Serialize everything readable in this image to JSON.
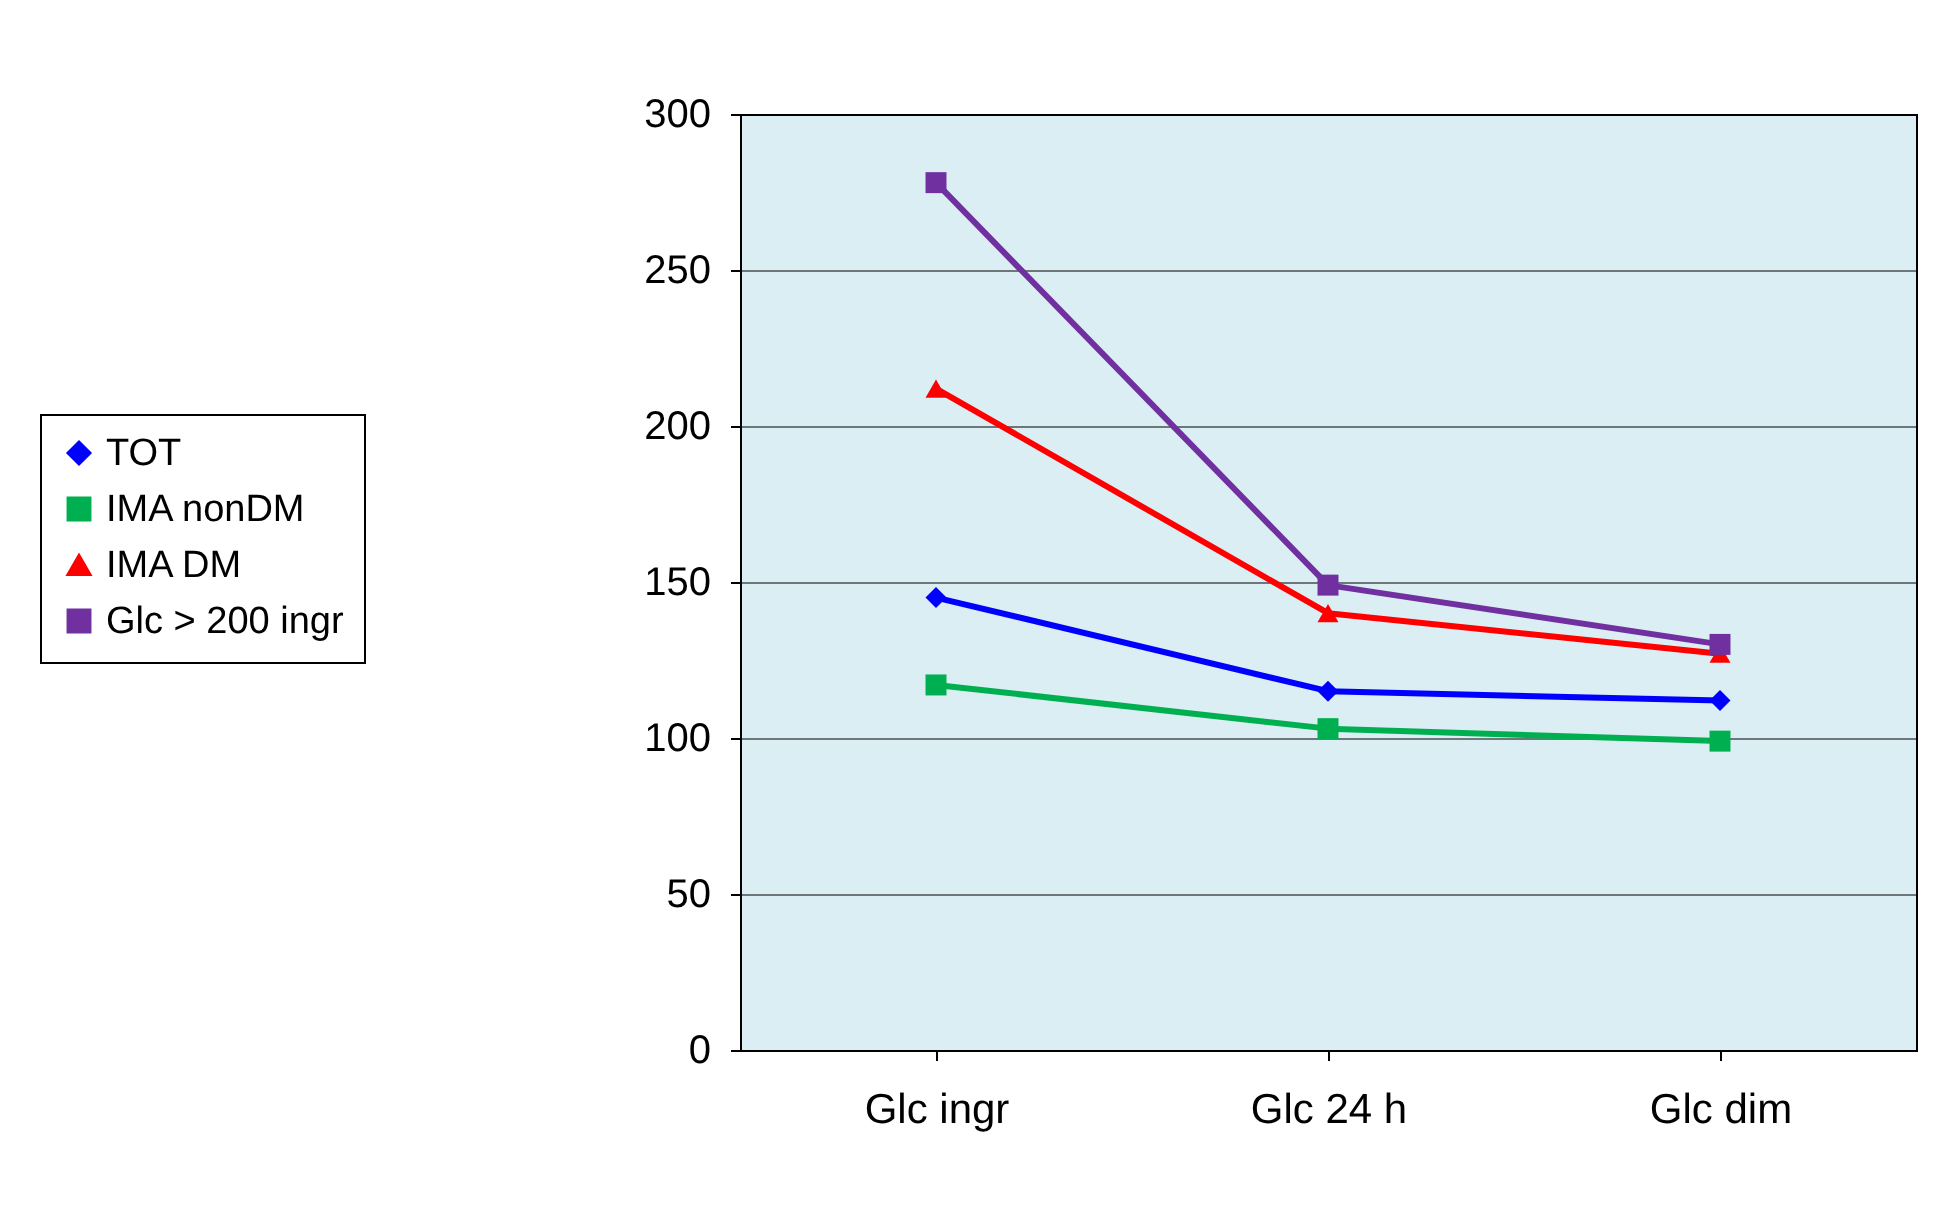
{
  "chart_data": {
    "type": "line",
    "categories": [
      "Glc ingr",
      "Glc 24 h",
      "Glc dim"
    ],
    "series": [
      {
        "name": "TOT",
        "color": "#0000ff",
        "marker": "diamond",
        "values": [
          145,
          115,
          112
        ]
      },
      {
        "name": "IMA nonDM",
        "color": "#00b050",
        "marker": "square",
        "values": [
          117,
          103,
          99
        ]
      },
      {
        "name": "IMA DM",
        "color": "#ff0000",
        "marker": "triangle",
        "values": [
          212,
          140,
          127
        ]
      },
      {
        "name": "Glc > 200 ingr",
        "color": "#7030a0",
        "marker": "square",
        "values": [
          278,
          149,
          130
        ]
      }
    ],
    "ylim": [
      0,
      300
    ],
    "yticks": [
      0,
      50,
      100,
      150,
      200,
      250,
      300
    ],
    "grid": "y",
    "legend": "left",
    "line_style": "solid"
  }
}
